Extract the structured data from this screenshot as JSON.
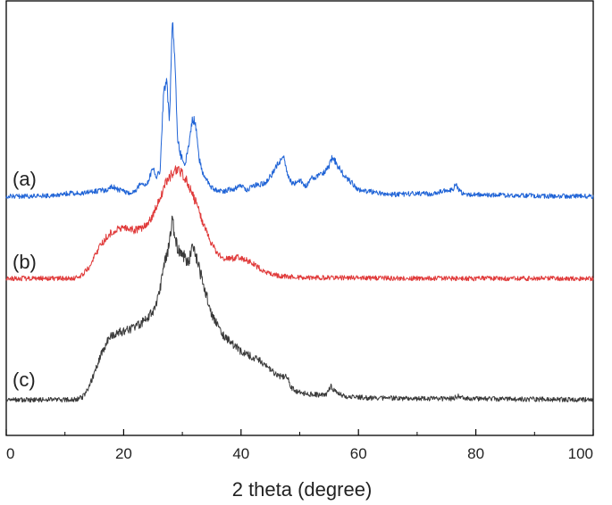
{
  "chart_data": {
    "type": "line",
    "xlabel": "2 theta (degree)",
    "ylabel": "",
    "xlim": [
      0,
      100
    ],
    "x_ticks": [
      "0",
      "20",
      "40",
      "60",
      "80",
      "100"
    ],
    "y_ticks": [],
    "grid": false,
    "legend": "none",
    "series": [
      {
        "name": "(a)",
        "color": "#1f63d6",
        "x": [
          0,
          5,
          8,
          10,
          13,
          15,
          17,
          18,
          19,
          20,
          21,
          22,
          22.8,
          23.5,
          24.2,
          25,
          25.6,
          26.2,
          26.8,
          27.3,
          27.8,
          28.3,
          28.7,
          29.2,
          29.8,
          30.5,
          31.2,
          31.7,
          32.2,
          32.8,
          33.5,
          34.2,
          35,
          36,
          37,
          38,
          39,
          40,
          41,
          42,
          43,
          44,
          45,
          45.8,
          46.5,
          47.2,
          47.6,
          48.2,
          49,
          50,
          51,
          52,
          53,
          54,
          55,
          55.5,
          56,
          57,
          58,
          59,
          60,
          62,
          65,
          68,
          70,
          72,
          74,
          75,
          76,
          76.6,
          77.2,
          78,
          80,
          85,
          90,
          95,
          100
        ],
        "y": [
          0,
          0,
          0.2,
          0.5,
          0.6,
          0.9,
          1.2,
          1.9,
          1.3,
          0.9,
          0.6,
          1.0,
          2.4,
          2.1,
          2.9,
          5.3,
          3.7,
          4.6,
          19.3,
          22.0,
          14.3,
          33.1,
          26.1,
          10.5,
          7.3,
          6.2,
          10.5,
          14.4,
          14.0,
          7.3,
          4.2,
          3.1,
          1.6,
          1.0,
          0.9,
          1.3,
          1.4,
          2.2,
          1.2,
          1.9,
          2.2,
          2.4,
          3.7,
          5.2,
          6.3,
          7.8,
          5.6,
          3.2,
          2.2,
          3.0,
          1.9,
          3.3,
          3.7,
          4.3,
          5.6,
          7.3,
          6.6,
          4.7,
          3.4,
          2.4,
          1.2,
          0.9,
          0.3,
          0.4,
          0.6,
          0.4,
          0.9,
          1.1,
          1.2,
          2.2,
          1.0,
          0.5,
          0.3,
          0.2,
          0.1,
          0,
          0
        ]
      },
      {
        "name": "(b)",
        "color": "#e03a3a",
        "x": [
          0,
          5,
          10,
          12,
          13,
          14,
          15,
          16,
          17,
          18,
          19,
          20,
          21,
          22,
          23,
          24,
          25,
          26,
          27,
          28,
          28.8,
          29.5,
          30.5,
          31.5,
          32.5,
          33.5,
          34.5,
          35.5,
          36.5,
          37.5,
          38.5,
          39.5,
          40.5,
          41.5,
          42.5,
          43.5,
          44.5,
          45.5,
          46.5,
          47.5,
          48.5,
          50,
          55,
          60,
          70,
          80,
          90,
          100
        ],
        "y": [
          0,
          0,
          0,
          0.1,
          0.6,
          2.0,
          4.0,
          6.0,
          7.6,
          8.7,
          9.4,
          9.5,
          9.2,
          9.0,
          9.2,
          10.1,
          12.0,
          14.6,
          17.3,
          19.3,
          20.6,
          20.0,
          18.9,
          16.1,
          13.7,
          10.4,
          7.6,
          5.5,
          4.1,
          3.6,
          3.7,
          3.9,
          3.6,
          3.1,
          2.4,
          1.6,
          1.0,
          0.7,
          0.5,
          0.4,
          0.3,
          0.2,
          0.1,
          0.1,
          0,
          0,
          0,
          0
        ]
      },
      {
        "name": "(c)",
        "color": "#3a3a3a",
        "x": [
          0,
          5,
          10,
          12,
          13,
          14,
          15,
          16,
          17,
          18,
          19,
          20,
          21,
          22,
          23,
          24,
          25,
          25.8,
          26.5,
          27.2,
          27.8,
          28.3,
          28.8,
          29.3,
          29.9,
          30.5,
          31.1,
          31.6,
          32.2,
          33,
          34,
          35,
          36,
          37,
          38,
          39,
          40,
          41,
          42,
          43,
          44,
          45,
          46,
          47,
          47.8,
          48.5,
          49.5,
          50.5,
          52,
          53.5,
          54.5,
          55.3,
          56,
          57,
          58,
          60,
          62,
          65,
          70,
          76,
          77,
          78,
          80,
          85,
          90,
          100
        ],
        "y": [
          0,
          0,
          0,
          0.1,
          0.5,
          2.0,
          5.0,
          8.0,
          10.5,
          12.0,
          12.5,
          12.8,
          13.0,
          13.5,
          14.3,
          15.2,
          16.5,
          19.0,
          22.5,
          26.5,
          29.0,
          33.5,
          30.0,
          28.2,
          27.0,
          26.5,
          25.8,
          28.5,
          27.3,
          24.0,
          20.0,
          16.0,
          14.0,
          12.0,
          11.0,
          10.0,
          9.0,
          8.5,
          8.0,
          7.5,
          6.5,
          5.5,
          4.8,
          4.2,
          4.6,
          2.3,
          1.5,
          1.2,
          1.0,
          0.9,
          1.0,
          2.6,
          1.6,
          1.0,
          0.6,
          0.5,
          0.3,
          0.3,
          0.2,
          0.2,
          0.7,
          0.3,
          0.2,
          0.1,
          0.1,
          0
        ]
      }
    ]
  }
}
